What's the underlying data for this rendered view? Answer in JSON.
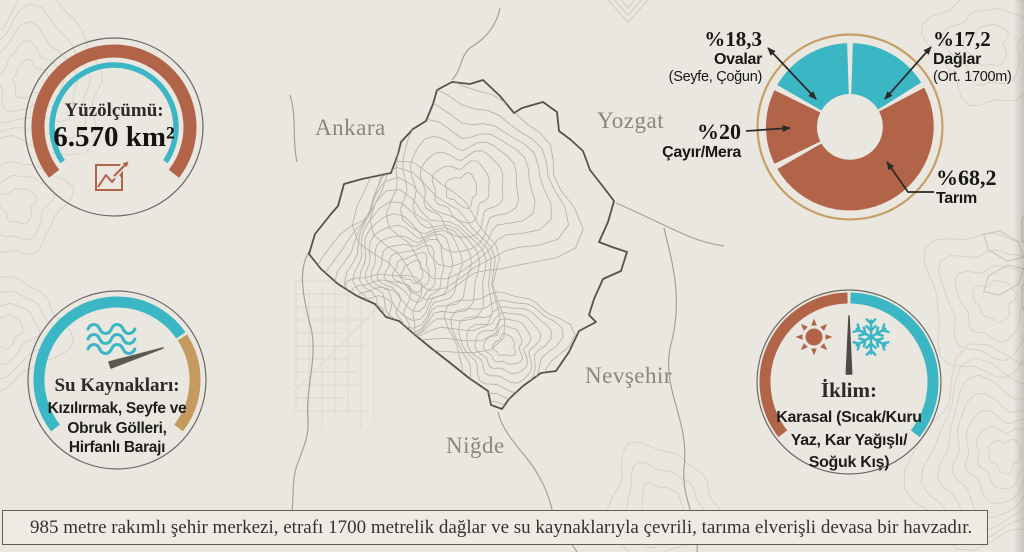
{
  "colors": {
    "background": "#e9e7e0",
    "rust": "#b26449",
    "teal": "#3ab6c5",
    "gold": "#c79e63",
    "ink": "#24231f",
    "outline_gray": "#5b594f",
    "map_label_gray": "#8a867a"
  },
  "stats": {
    "area": {
      "title": "Yüzölçümü:",
      "value": "6.570 km²"
    },
    "water": {
      "title": "Su Kaynakları:",
      "lines": [
        "Kızılırmak, Seyfe ve",
        "Obruk Gölleri,",
        "Hirfanlı Barajı"
      ]
    },
    "climate": {
      "title": "İklim:",
      "lines": [
        "Karasal (Sıcak/Kuru",
        "Yaz, Kar Yağışlı/",
        "Soğuk Kış)"
      ]
    }
  },
  "map": {
    "labels": [
      {
        "text": "Ankara"
      },
      {
        "text": "Yozgat"
      },
      {
        "text": "Nevşehir"
      },
      {
        "text": "Niğde"
      }
    ]
  },
  "chart_data": {
    "type": "pie",
    "subtype": "donut",
    "unit": "percent",
    "legend_position": "callouts",
    "ring_color": "#c79e63",
    "segments": [
      {
        "label": "Ovalar",
        "pct_label": "%18,3",
        "value": 18.3,
        "note": "(Seyfe, Çoğun)",
        "color": "#3ab6c5",
        "start_deg": 300,
        "end_deg": 358
      },
      {
        "label": "Dağlar",
        "pct_label": "%17,2",
        "value": 17.2,
        "note": "(Ort. 1700m)",
        "color": "#3ab6c5",
        "start_deg": 2,
        "end_deg": 58
      },
      {
        "label": "Çayır/Mera",
        "pct_label": "%20",
        "value": 20,
        "note": "",
        "color": "#b26449",
        "start_deg": 244,
        "end_deg": 296
      },
      {
        "label": "Tarım",
        "pct_label": "%68,2",
        "value": 68.2,
        "note": "",
        "color": "#b26449",
        "start_deg": 62,
        "end_deg": 240
      }
    ]
  },
  "footer": {
    "text": "985 metre rakımlı şehir merkezi, etrafı 1700 metrelik dağlar ve su kaynaklarıyla çevrili, tarıma elverişli devasa bir havzadır."
  }
}
